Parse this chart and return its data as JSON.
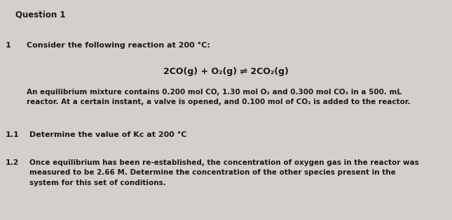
{
  "title": "Question 1",
  "bg_color": "#d3d0cb",
  "text_color": "#1a1a1a",
  "section_number": "1",
  "intro_text": "Consider the following reaction at 200 °C:",
  "equation": "2CO(g) + O₂(g) ⇌ 2CO₂(g)",
  "paragraph": "An equilibrium mixture contains 0.200 mol CO, 1.30 mol O₂ and 0.300 mol CO₂ in a 500. mL\nreactor. At a certain instant, a valve is opened, and 0.100 mol of CO₂ is added to the reactor.",
  "q1_num": "1.1",
  "q1_text": "Determine the value of Kᴄ at 200 °C",
  "q2_num": "1.2",
  "q2_text": "Once equilibrium has been re-established, the concentration of oxygen gas in the reactor was\nmeasured to be 2.66 M. Determine the concentration of the other species present in the\nsystem for this set of conditions.",
  "figsize": [
    6.45,
    3.15
  ],
  "dpi": 100
}
